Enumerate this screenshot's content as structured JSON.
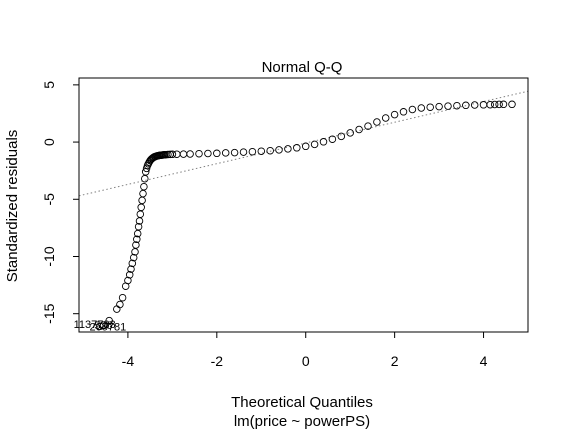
{
  "chart_data": {
    "type": "scatter",
    "title": "Normal Q-Q",
    "xlabel": "Theoretical Quantiles",
    "subtitle": "lm(price ~ powerPS)",
    "ylabel": "Standardized residuals",
    "xlim": [
      -5.1,
      5.0
    ],
    "ylim": [
      -16.6,
      5.6
    ],
    "xticks": [
      -4,
      -2,
      0,
      2,
      4
    ],
    "yticks": [
      -15,
      -10,
      -5,
      0,
      5
    ],
    "xtick_labels": [
      "-4",
      "-2",
      "0",
      "2",
      "4"
    ],
    "ytick_labels": [
      "-15",
      "-10",
      "-5",
      "0",
      "5"
    ],
    "grid": false,
    "point_style": "open circle",
    "reference_line": {
      "style": "dotted",
      "color": "#808080",
      "points": [
        [
          -5.1,
          -4.7
        ],
        [
          5.0,
          4.45
        ]
      ]
    },
    "point_labels": [
      {
        "text": "1137783",
        "x": -4.75,
        "y": -15.9
      },
      {
        "text": "265781",
        "x": -4.45,
        "y": -16.1
      },
      {
        "text": "526",
        "x": -4.55,
        "y": -16.0
      }
    ],
    "points": {
      "x": [
        -4.63,
        -4.55,
        -4.42,
        -4.25,
        -4.18,
        -4.12,
        -4.05,
        -4.0,
        -3.96,
        -3.93,
        -3.9,
        -3.87,
        -3.84,
        -3.82,
        -3.8,
        -3.78,
        -3.76,
        -3.74,
        -3.72,
        -3.7,
        -3.68,
        -3.66,
        -3.64,
        -3.62,
        -3.6,
        -3.58,
        -3.56,
        -3.54,
        -3.52,
        -3.5,
        -3.48,
        -3.46,
        -3.44,
        -3.42,
        -3.4,
        -3.38,
        -3.36,
        -3.34,
        -3.32,
        -3.3,
        -3.28,
        -3.26,
        -3.24,
        -3.22,
        -3.2,
        -3.18,
        -3.15,
        -3.1,
        -3.05,
        -3.0,
        -2.9,
        -2.75,
        -2.6,
        -2.4,
        -2.2,
        -2.0,
        -1.8,
        -1.6,
        -1.4,
        -1.2,
        -1.0,
        -0.8,
        -0.6,
        -0.4,
        -0.2,
        0.0,
        0.2,
        0.4,
        0.6,
        0.8,
        1.0,
        1.2,
        1.4,
        1.6,
        1.8,
        2.0,
        2.2,
        2.4,
        2.6,
        2.8,
        3.0,
        3.2,
        3.4,
        3.6,
        3.8,
        4.0,
        4.15,
        4.25,
        4.35,
        4.45,
        4.64
      ],
      "y": [
        -16.1,
        -16.0,
        -15.6,
        -14.6,
        -14.2,
        -13.6,
        -12.6,
        -12.1,
        -11.6,
        -11.1,
        -10.6,
        -10.1,
        -9.6,
        -9.0,
        -8.5,
        -8.0,
        -7.4,
        -6.9,
        -6.3,
        -5.7,
        -5.1,
        -4.5,
        -3.9,
        -3.2,
        -2.6,
        -2.3,
        -2.05,
        -1.9,
        -1.75,
        -1.62,
        -1.52,
        -1.45,
        -1.38,
        -1.33,
        -1.29,
        -1.26,
        -1.23,
        -1.21,
        -1.19,
        -1.17,
        -1.16,
        -1.15,
        -1.14,
        -1.13,
        -1.12,
        -1.11,
        -1.1,
        -1.09,
        -1.08,
        -1.07,
        -1.06,
        -1.05,
        -1.04,
        -1.02,
        -1.0,
        -0.98,
        -0.95,
        -0.92,
        -0.88,
        -0.84,
        -0.8,
        -0.75,
        -0.68,
        -0.6,
        -0.5,
        -0.37,
        -0.2,
        0.02,
        0.25,
        0.5,
        0.8,
        1.1,
        1.4,
        1.75,
        2.1,
        2.4,
        2.65,
        2.85,
        2.98,
        3.05,
        3.1,
        3.14,
        3.18,
        3.21,
        3.24,
        3.26,
        3.27,
        3.28,
        3.29,
        3.3,
        3.3
      ]
    }
  }
}
